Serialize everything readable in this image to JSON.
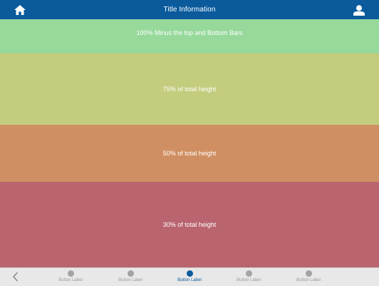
{
  "header": {
    "title": "Title Information",
    "home_icon": "home-icon",
    "user_icon": "user-icon"
  },
  "bands": {
    "full": "100% Minus the top and Bottom Bars",
    "b75": "75% of total height",
    "b50": "50% of total height",
    "b30": "30% of total height"
  },
  "bottom_bar": {
    "back_icon": "chevron-left-icon",
    "tabs": [
      {
        "label": "Button Label",
        "active": false
      },
      {
        "label": "Button Label",
        "active": false
      },
      {
        "label": "Button Label",
        "active": true
      },
      {
        "label": "Button Label",
        "active": false
      },
      {
        "label": "Button Label",
        "active": false
      }
    ]
  },
  "colors": {
    "header_bg": "#0a5a9c",
    "band_full": "#97d99b",
    "band_75": "#c4cc7d",
    "band_50": "#d08f62",
    "band_30": "#b9646f",
    "tab_active": "#0a5a9c",
    "tab_inactive": "#a3a3a3"
  }
}
